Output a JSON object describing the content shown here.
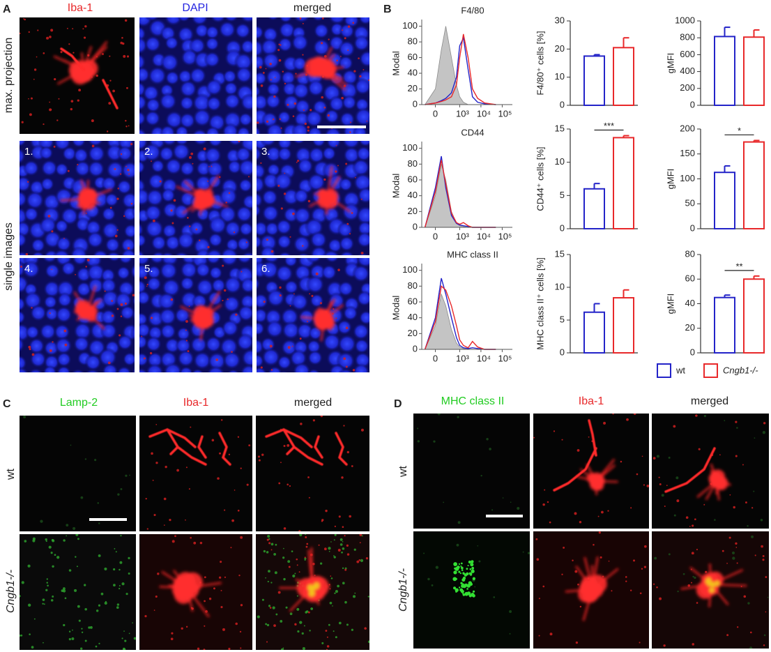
{
  "panel_labels": [
    "A",
    "B",
    "C",
    "D"
  ],
  "panel_a": {
    "columns": [
      "Iba-1",
      "DAPI",
      "merged"
    ],
    "rows": [
      "max. projection",
      "single images"
    ],
    "image_numbers": [
      "1.",
      "2.",
      "3.",
      "4.",
      "5.",
      "6."
    ]
  },
  "chart_data": [
    {
      "type": "histogram-overlay",
      "title": "F4/80",
      "ylabel": "Modal",
      "x": [
        -200,
        0,
        100,
        200,
        400,
        700,
        1000,
        1500,
        2500,
        4000,
        7000,
        15000,
        50000
      ],
      "xlim": [
        -300,
        300000
      ],
      "xticks": [
        0,
        {
          "value": 1000,
          "label": "10³"
        },
        {
          "value": 10000,
          "label": "10⁴"
        },
        {
          "value": 100000,
          "label": "10⁵"
        }
      ],
      "ylim": [
        0,
        105
      ],
      "yticks": [
        0,
        20,
        40,
        60,
        80,
        100
      ],
      "series": [
        {
          "color": "#c4c4c4",
          "filled": true,
          "values": [
            0,
            20,
            70,
            100,
            60,
            25,
            10,
            3,
            0,
            0,
            0,
            0,
            0
          ]
        },
        {
          "color": "#2323c8",
          "filled": false,
          "values": [
            0,
            2,
            5,
            8,
            15,
            35,
            75,
            85,
            45,
            10,
            3,
            1,
            0
          ]
        },
        {
          "color": "#e8282a",
          "filled": false,
          "values": [
            0,
            2,
            4,
            6,
            10,
            25,
            60,
            90,
            60,
            20,
            8,
            2,
            0
          ]
        }
      ]
    },
    {
      "type": "histogram-overlay",
      "title": "CD44",
      "ylabel": "Modal",
      "x": [
        -200,
        0,
        100,
        200,
        400,
        700,
        1000,
        1500,
        2500,
        4000,
        7000,
        15000,
        50000
      ],
      "xlim": [
        -300,
        300000
      ],
      "xticks": [
        0,
        {
          "value": 1000,
          "label": "10³"
        },
        {
          "value": 10000,
          "label": "10⁴"
        },
        {
          "value": 100000,
          "label": "10⁵"
        }
      ],
      "ylim": [
        0,
        105
      ],
      "yticks": [
        0,
        20,
        40,
        60,
        80,
        100
      ],
      "series": [
        {
          "color": "#c4c4c4",
          "filled": true,
          "values": [
            0,
            40,
            80,
            60,
            20,
            5,
            2,
            1,
            0,
            0,
            0,
            0,
            0
          ]
        },
        {
          "color": "#2323c8",
          "filled": false,
          "values": [
            0,
            50,
            90,
            50,
            15,
            5,
            3,
            2,
            1,
            0,
            0,
            0,
            0
          ]
        },
        {
          "color": "#e8282a",
          "filled": false,
          "values": [
            0,
            45,
            85,
            55,
            18,
            6,
            4,
            6,
            2,
            0,
            0,
            0,
            0
          ]
        }
      ]
    },
    {
      "type": "histogram-overlay",
      "title": "MHC class II",
      "ylabel": "Modal",
      "x": [
        -200,
        0,
        100,
        200,
        400,
        700,
        1000,
        1500,
        2500,
        4000,
        7000,
        15000,
        50000
      ],
      "xlim": [
        -300,
        300000
      ],
      "xticks": [
        0,
        {
          "value": 1000,
          "label": "10³"
        },
        {
          "value": 10000,
          "label": "10⁴"
        },
        {
          "value": 100000,
          "label": "10⁵"
        }
      ],
      "ylim": [
        0,
        105
      ],
      "yticks": [
        0,
        20,
        40,
        60,
        80,
        100
      ],
      "series": [
        {
          "color": "#c4c4c4",
          "filled": true,
          "values": [
            0,
            30,
            70,
            55,
            25,
            8,
            3,
            1,
            0,
            0,
            0,
            0,
            0
          ]
        },
        {
          "color": "#2323c8",
          "filled": false,
          "values": [
            0,
            40,
            90,
            70,
            40,
            15,
            5,
            2,
            1,
            2,
            1,
            0,
            0
          ]
        },
        {
          "color": "#e8282a",
          "filled": false,
          "values": [
            0,
            35,
            80,
            75,
            55,
            30,
            12,
            5,
            2,
            10,
            3,
            0,
            0
          ]
        }
      ]
    },
    {
      "type": "bar",
      "ylabel": "F4/80⁺ cells [%]",
      "ylim": [
        0,
        30
      ],
      "yticks": [
        0,
        10,
        20,
        30
      ],
      "values": [
        17.5,
        20.5
      ],
      "errors": [
        0.5,
        3.5
      ]
    },
    {
      "type": "bar",
      "ylabel": "gMFI",
      "ylim": [
        0,
        1000
      ],
      "yticks": [
        0,
        200,
        400,
        600,
        800,
        1000
      ],
      "values": [
        815,
        808
      ],
      "errors": [
        110,
        85
      ]
    },
    {
      "type": "bar",
      "ylabel": "CD44⁺ cells [%]",
      "ylim": [
        0,
        15
      ],
      "yticks": [
        0,
        5,
        10,
        15
      ],
      "values": [
        6,
        13.7
      ],
      "errors": [
        0.8,
        0.3
      ],
      "annotation": "***"
    },
    {
      "type": "bar",
      "ylabel": "gMFI",
      "ylim": [
        0,
        200
      ],
      "yticks": [
        0,
        50,
        100,
        150,
        200
      ],
      "values": [
        113,
        174
      ],
      "errors": [
        13,
        3
      ],
      "annotation": "*"
    },
    {
      "type": "bar",
      "ylabel": "MHC class II⁺ cells [%]",
      "ylim": [
        0,
        15
      ],
      "yticks": [
        0,
        5,
        10,
        15
      ],
      "values": [
        6.2,
        8.4
      ],
      "errors": [
        1.3,
        1.2
      ]
    },
    {
      "type": "bar",
      "ylabel": "gMFI",
      "ylim": [
        0,
        80
      ],
      "yticks": [
        0,
        20,
        40,
        60,
        80
      ],
      "values": [
        45,
        60
      ],
      "errors": [
        2,
        2.5
      ],
      "annotation": "**"
    }
  ],
  "legend": [
    {
      "name": "wt",
      "color": "#2323c8"
    },
    {
      "name": "Cngb1-/-",
      "color": "#e8282a"
    }
  ],
  "panel_c": {
    "columns": [
      "Lamp-2",
      "Iba-1",
      "merged"
    ],
    "rows": [
      "wt",
      "Cngb1-/-"
    ]
  },
  "panel_d": {
    "columns": [
      "MHC class II",
      "Iba-1",
      "merged"
    ],
    "rows": [
      "wt",
      "Cngb1-/-"
    ]
  }
}
